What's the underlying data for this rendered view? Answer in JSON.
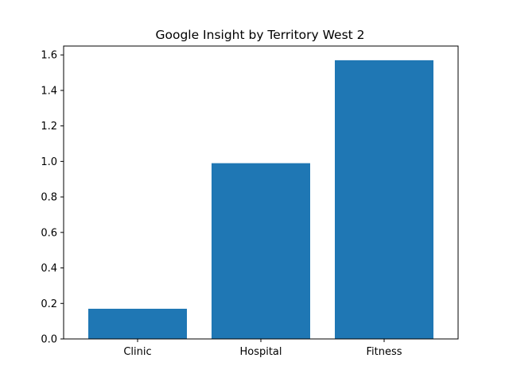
{
  "chart_data": {
    "type": "bar",
    "title": "Google Insight by Territory West 2",
    "xlabel": "",
    "ylabel": "",
    "categories": [
      "Clinic",
      "Hospital",
      "Fitness"
    ],
    "values": [
      0.17,
      0.99,
      1.57
    ],
    "ylim": [
      0,
      1.65
    ],
    "yticks": [
      "0.0",
      "0.2",
      "0.4",
      "0.6",
      "0.8",
      "1.0",
      "1.2",
      "1.4",
      "1.6"
    ],
    "grid": false,
    "bar_color": "#1f77b4"
  }
}
